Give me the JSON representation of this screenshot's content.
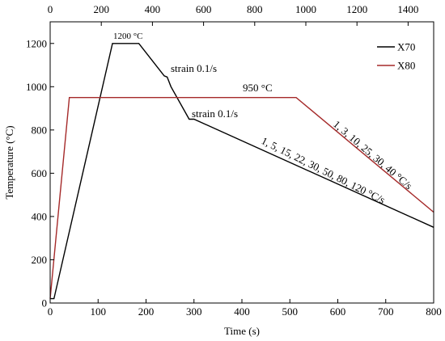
{
  "chart_data": {
    "type": "line",
    "xlabel": "Time (s)",
    "ylabel": "Temperature (°C)",
    "xlim": [
      0,
      800
    ],
    "ylim": [
      0,
      1300
    ],
    "x_ticks": [
      0,
      100,
      200,
      300,
      400,
      500,
      600,
      700,
      800
    ],
    "y_ticks": [
      0,
      200,
      400,
      600,
      800,
      1000,
      1200
    ],
    "top_axis": {
      "xlim": [
        0,
        1500
      ],
      "ticks": [
        0,
        200,
        400,
        600,
        800,
        1000,
        1200,
        1400
      ]
    },
    "grid": false,
    "legend_position": "top-right",
    "series": [
      {
        "name": "X70",
        "color": "#000000",
        "axis": "bottom",
        "x": [
          0,
          8,
          130,
          185,
          238,
          244,
          252,
          290,
          300,
          800
        ],
        "y": [
          20,
          20,
          1200,
          1200,
          1050,
          1045,
          1000,
          850,
          850,
          350
        ]
      },
      {
        "name": "X80",
        "color": "#a52a2a",
        "axis": "top",
        "x": [
          0,
          75,
          962,
          1500
        ],
        "y": [
          20,
          950,
          950,
          420
        ]
      }
    ],
    "annotations": {
      "peak_temp": "1200 °C",
      "strain_upper": "strain 0.1/s",
      "hold_temp": "950 °C",
      "strain_lower": "strain 0.1/s",
      "x80_rates": "1, 3, 10, 25, 30, 40 °C/s",
      "x70_rates": "1, 5, 15, 22, 30, 50, 80, 120 °C/s"
    }
  }
}
